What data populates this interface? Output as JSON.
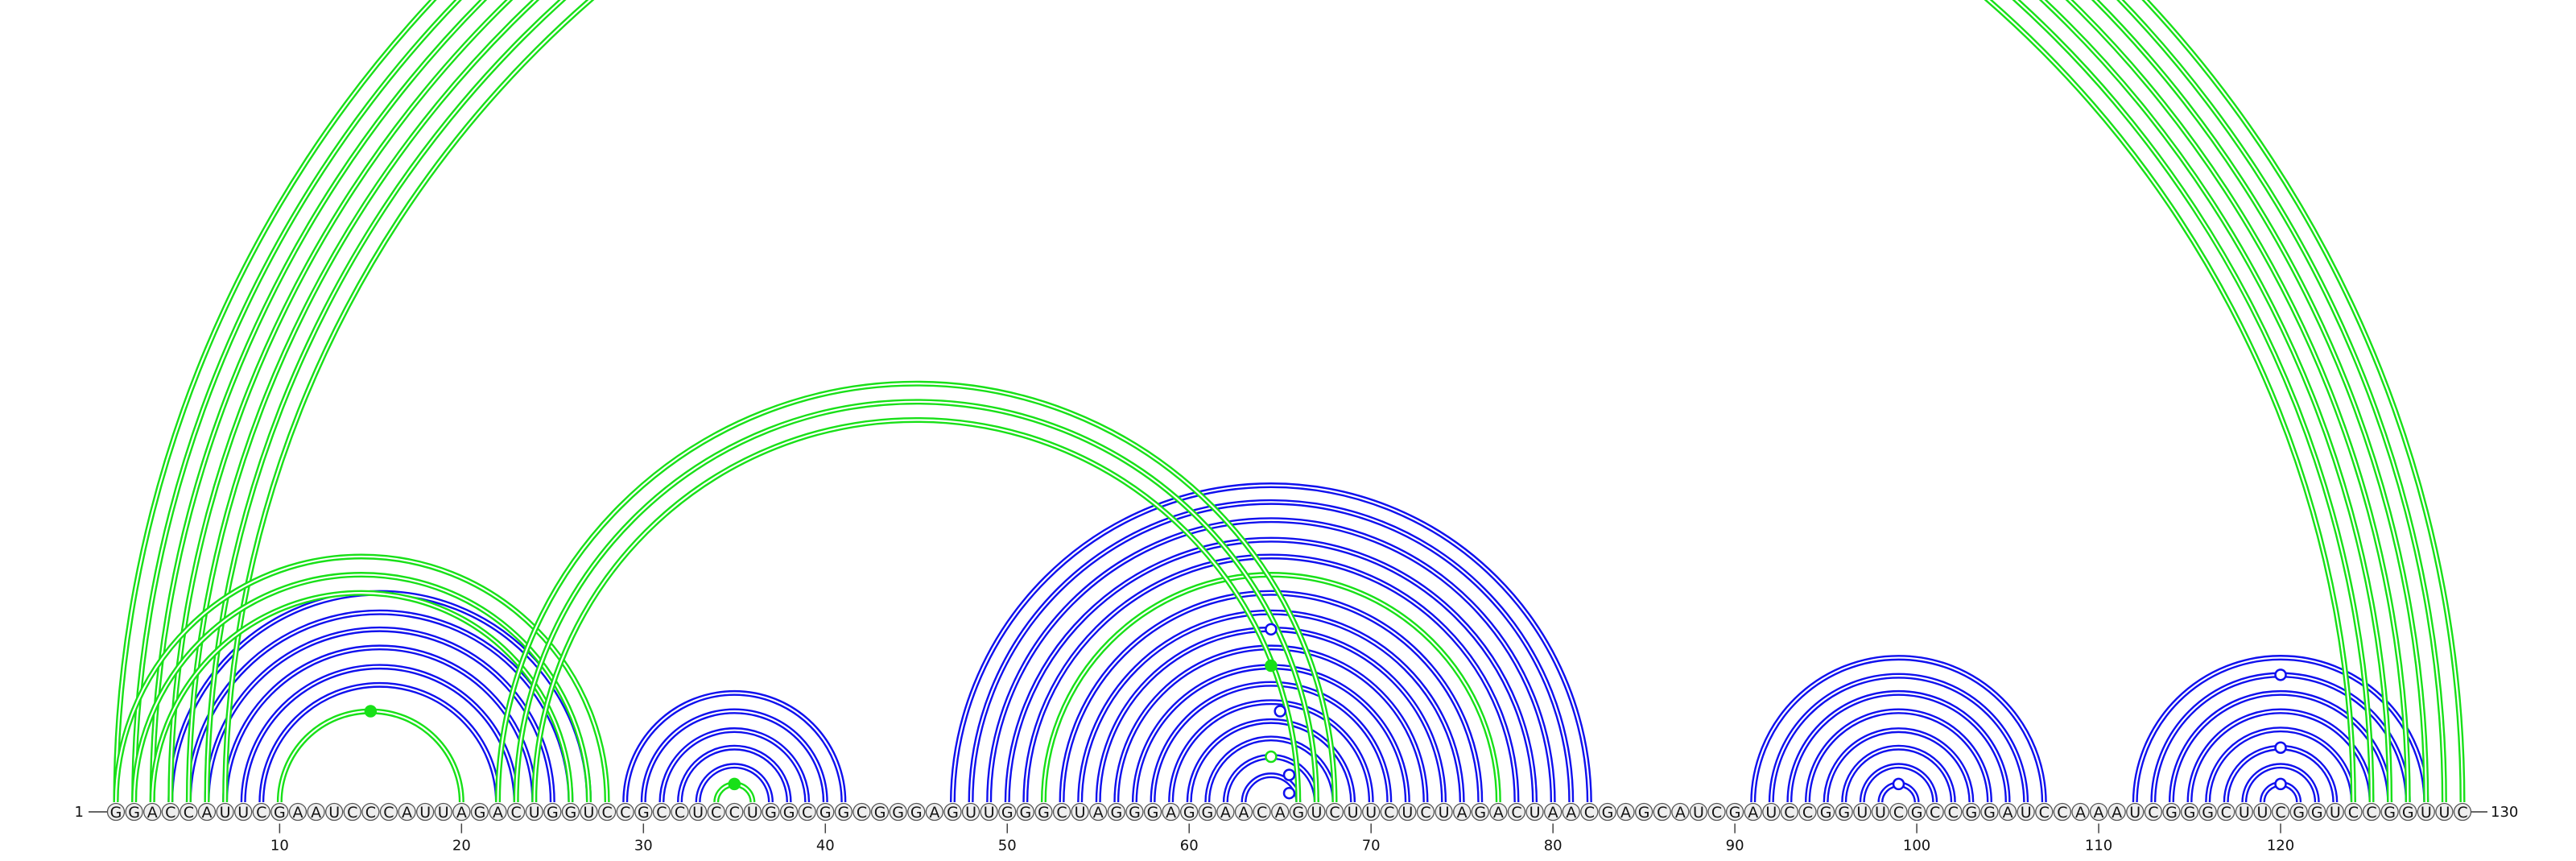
{
  "sequence": {
    "start_label": "1",
    "end_label": "130",
    "nucleotides": "GGACCAUUCGAAUCCCAUUAGACUGGUCCGCCUCCUGGCGGCGGGAGUUGGGCUAGGGAGGAACAGUCUUCUCUAGACUAACGAGCAUCGAUCCGGUUCGCCGGAUCCAAAUCGGGCUUCGGUCCGGUUC",
    "ticks": [
      10,
      20,
      30,
      40,
      50,
      60,
      70,
      80,
      90,
      100,
      110,
      120
    ]
  },
  "colors": {
    "canonical": "#1010ee",
    "noncanonical": "#18e018",
    "nucleotide_fill": "#eeeeee",
    "nucleotide_stroke": "#555555",
    "text": "#111111"
  },
  "arcs_canonical": [
    [
      4,
      27
    ],
    [
      5,
      26
    ],
    [
      6,
      25
    ],
    [
      7,
      24
    ],
    [
      8,
      23
    ],
    [
      9,
      22
    ],
    [
      29,
      41
    ],
    [
      30,
      40
    ],
    [
      31,
      39
    ],
    [
      32,
      38
    ],
    [
      33,
      37
    ],
    [
      47,
      82
    ],
    [
      48,
      81
    ],
    [
      49,
      80
    ],
    [
      50,
      79
    ],
    [
      51,
      78
    ],
    [
      53,
      76
    ],
    [
      54,
      75
    ],
    [
      55,
      74
    ],
    [
      56,
      73
    ],
    [
      57,
      72
    ],
    [
      58,
      71
    ],
    [
      59,
      70
    ],
    [
      60,
      69
    ],
    [
      61,
      68
    ],
    [
      62,
      67
    ],
    [
      63,
      66
    ],
    [
      91,
      107
    ],
    [
      92,
      106
    ],
    [
      93,
      105
    ],
    [
      94,
      104
    ],
    [
      95,
      103
    ],
    [
      96,
      102
    ],
    [
      97,
      101
    ],
    [
      98,
      100
    ],
    [
      112,
      128
    ],
    [
      113,
      127
    ],
    [
      114,
      126
    ],
    [
      115,
      125
    ],
    [
      116,
      124
    ],
    [
      117,
      123
    ],
    [
      118,
      122
    ],
    [
      119,
      121
    ]
  ],
  "arcs_noncanonical": [
    [
      1,
      130
    ],
    [
      2,
      129
    ],
    [
      3,
      128
    ],
    [
      4,
      127
    ],
    [
      5,
      126
    ],
    [
      6,
      125
    ],
    [
      7,
      124
    ],
    [
      1,
      28
    ],
    [
      2,
      27
    ],
    [
      3,
      26
    ],
    [
      10,
      20
    ],
    [
      34,
      36
    ],
    [
      52,
      77
    ],
    [
      22,
      68
    ],
    [
      23,
      67
    ],
    [
      24,
      66
    ]
  ],
  "markers": [
    {
      "i": 65,
      "j": 66,
      "type": "canonical",
      "filled": false
    },
    {
      "i": 64,
      "j": 67,
      "type": "canonical",
      "filled": false
    },
    {
      "i": 60,
      "j": 70,
      "type": "canonical",
      "filled": false
    },
    {
      "i": 98,
      "j": 100,
      "type": "canonical",
      "filled": false
    },
    {
      "i": 119,
      "j": 121,
      "type": "canonical",
      "filled": false
    },
    {
      "i": 117,
      "j": 123,
      "type": "canonical",
      "filled": false
    },
    {
      "i": 113,
      "j": 127,
      "type": "canonical",
      "filled": false
    },
    {
      "i": 55,
      "j": 74,
      "type": "canonical",
      "filled": false
    },
    {
      "i": 1,
      "j": 130,
      "type": "noncanonical",
      "filled": false
    },
    {
      "i": 10,
      "j": 20,
      "type": "noncanonical",
      "filled": true
    },
    {
      "i": 34,
      "j": 36,
      "type": "noncanonical",
      "filled": true
    },
    {
      "i": 57,
      "j": 72,
      "type": "noncanonical",
      "filled": true
    },
    {
      "i": 62,
      "j": 67,
      "type": "noncanonical",
      "filled": false
    }
  ]
}
